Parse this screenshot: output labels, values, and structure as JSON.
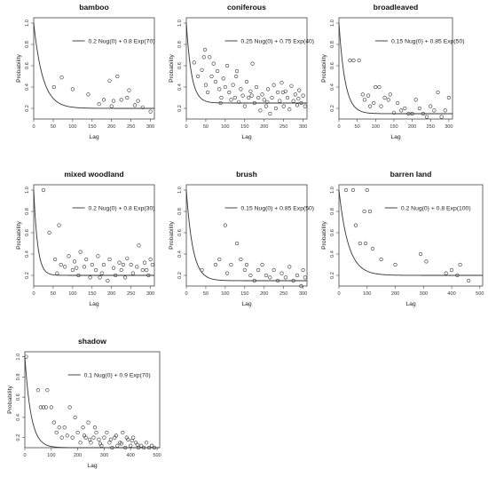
{
  "chart_data": [
    {
      "type": "scatter",
      "title": "bamboo",
      "xlabel": "Lag",
      "ylabel": "Probability",
      "xlim": [
        0,
        310
      ],
      "ylim": [
        0.1,
        1.05
      ],
      "xticks": [
        0,
        50,
        100,
        150,
        200,
        250,
        300
      ],
      "yticks": [
        0.2,
        0.4,
        0.6,
        0.8,
        1.0
      ],
      "legend": "top-right",
      "series": [
        {
          "name": "0.2 Nug(0) + 0.8 Exp(70)",
          "kind": "line",
          "model": {
            "nugget": 0.2,
            "sill": 0.8,
            "range": 70
          }
        },
        {
          "kind": "points",
          "x": [
            52,
            72,
            100,
            140,
            168,
            180,
            195,
            200,
            205,
            215,
            225,
            240,
            245,
            260,
            268,
            280,
            300
          ],
          "y": [
            0.4,
            0.49,
            0.38,
            0.33,
            0.24,
            0.28,
            0.46,
            0.22,
            0.27,
            0.5,
            0.28,
            0.3,
            0.37,
            0.23,
            0.27,
            0.21,
            0.17
          ]
        }
      ]
    },
    {
      "type": "scatter",
      "title": "coniferous",
      "xlabel": "Lag",
      "ylabel": "Probability",
      "xlim": [
        0,
        310
      ],
      "ylim": [
        0.1,
        1.05
      ],
      "xticks": [
        0,
        50,
        100,
        150,
        200,
        250,
        300
      ],
      "yticks": [
        0.2,
        0.4,
        0.6,
        0.8,
        1.0
      ],
      "legend": "top-right",
      "series": [
        {
          "name": "0.25 Nug(0) + 0.75 Exp(40)",
          "kind": "line",
          "model": {
            "nugget": 0.25,
            "sill": 0.75,
            "range": 40
          }
        },
        {
          "kind": "points",
          "x": [
            20,
            30,
            40,
            45,
            50,
            55,
            60,
            65,
            70,
            75,
            80,
            85,
            90,
            95,
            100,
            105,
            110,
            115,
            120,
            125,
            130,
            135,
            140,
            145,
            150,
            155,
            160,
            165,
            170,
            175,
            180,
            185,
            190,
            195,
            200,
            205,
            210,
            215,
            220,
            225,
            230,
            235,
            240,
            245,
            250,
            255,
            260,
            265,
            270,
            275,
            280,
            285,
            290,
            295,
            300,
            305,
            48,
            88,
            128,
            168,
            208,
            248,
            288
          ],
          "y": [
            0.63,
            0.5,
            0.56,
            0.68,
            0.42,
            0.35,
            0.68,
            0.5,
            0.62,
            0.45,
            0.55,
            0.38,
            0.3,
            0.48,
            0.4,
            0.6,
            0.35,
            0.28,
            0.42,
            0.3,
            0.55,
            0.26,
            0.38,
            0.32,
            0.22,
            0.45,
            0.3,
            0.36,
            0.62,
            0.25,
            0.4,
            0.3,
            0.18,
            0.33,
            0.28,
            0.22,
            0.38,
            0.15,
            0.3,
            0.42,
            0.2,
            0.35,
            0.27,
            0.44,
            0.22,
            0.36,
            0.3,
            0.19,
            0.41,
            0.27,
            0.33,
            0.23,
            0.37,
            0.25,
            0.32,
            0.22,
            0.75,
            0.25,
            0.5,
            0.32,
            0.26,
            0.35,
            0.29
          ]
        }
      ]
    },
    {
      "type": "scatter",
      "title": "broadleaved",
      "xlabel": "Lag",
      "ylabel": "Probability",
      "xlim": [
        0,
        310
      ],
      "ylim": [
        0.1,
        1.05
      ],
      "xticks": [
        0,
        50,
        100,
        150,
        200,
        250,
        300
      ],
      "yticks": [
        0.2,
        0.4,
        0.6,
        0.8,
        1.0
      ],
      "legend": "top-right",
      "series": [
        {
          "name": "0.15 Nug(0) + 0.85 Exp(50)",
          "kind": "line",
          "model": {
            "nugget": 0.15,
            "sill": 0.85,
            "range": 50
          }
        },
        {
          "kind": "points",
          "x": [
            30,
            40,
            55,
            65,
            70,
            80,
            85,
            95,
            100,
            110,
            115,
            125,
            135,
            140,
            150,
            160,
            170,
            180,
            190,
            200,
            210,
            220,
            230,
            240,
            250,
            260,
            270,
            280,
            290,
            300
          ],
          "y": [
            0.65,
            0.65,
            0.65,
            0.33,
            0.28,
            0.32,
            0.22,
            0.25,
            0.4,
            0.4,
            0.22,
            0.3,
            0.28,
            0.33,
            0.16,
            0.25,
            0.18,
            0.2,
            0.15,
            0.15,
            0.28,
            0.2,
            0.15,
            0.12,
            0.22,
            0.18,
            0.35,
            0.12,
            0.18,
            0.3
          ]
        }
      ]
    },
    {
      "type": "scatter",
      "title": "mixed woodland",
      "xlabel": "Lag",
      "ylabel": "Probability",
      "xlim": [
        0,
        310
      ],
      "ylim": [
        0.1,
        1.05
      ],
      "xticks": [
        0,
        50,
        100,
        150,
        200,
        250,
        300
      ],
      "yticks": [
        0.2,
        0.4,
        0.6,
        0.8,
        1.0
      ],
      "legend": "top-right",
      "series": [
        {
          "name": "0.2 Nug(0) + 0.8 Exp(30)",
          "kind": "line",
          "model": {
            "nugget": 0.2,
            "sill": 0.8,
            "range": 30
          }
        },
        {
          "kind": "points",
          "x": [
            25,
            40,
            55,
            65,
            70,
            80,
            90,
            100,
            105,
            115,
            120,
            130,
            135,
            145,
            150,
            160,
            165,
            175,
            180,
            190,
            195,
            205,
            210,
            220,
            225,
            235,
            240,
            250,
            255,
            265,
            270,
            280,
            285,
            295,
            300,
            305,
            60,
            110,
            170,
            230,
            290
          ],
          "y": [
            1.0,
            0.6,
            0.35,
            0.67,
            0.3,
            0.28,
            0.38,
            0.25,
            0.33,
            0.2,
            0.42,
            0.28,
            0.35,
            0.18,
            0.3,
            0.25,
            0.38,
            0.22,
            0.3,
            0.15,
            0.35,
            0.27,
            0.2,
            0.32,
            0.25,
            0.18,
            0.36,
            0.3,
            0.22,
            0.28,
            0.48,
            0.25,
            0.32,
            0.2,
            0.35,
            0.3,
            0.22,
            0.27,
            0.18,
            0.3,
            0.25
          ]
        }
      ]
    },
    {
      "type": "scatter",
      "title": "brush",
      "xlabel": "Lag",
      "ylabel": "Probability",
      "xlim": [
        0,
        310
      ],
      "ylim": [
        0.1,
        1.05
      ],
      "xticks": [
        0,
        50,
        100,
        150,
        200,
        250,
        300
      ],
      "yticks": [
        0.2,
        0.4,
        0.6,
        0.8,
        1.0
      ],
      "legend": "top-right",
      "series": [
        {
          "name": "0.15 Nug(0) + 0.85 Exp(50)",
          "kind": "line",
          "model": {
            "nugget": 0.15,
            "sill": 0.85,
            "range": 50
          }
        },
        {
          "kind": "points",
          "x": [
            40,
            75,
            85,
            100,
            105,
            115,
            130,
            140,
            150,
            155,
            165,
            175,
            185,
            195,
            205,
            215,
            225,
            235,
            245,
            255,
            265,
            275,
            285,
            295,
            300,
            305
          ],
          "y": [
            0.25,
            0.3,
            0.35,
            0.67,
            0.22,
            0.3,
            0.5,
            0.35,
            0.25,
            0.3,
            0.2,
            0.15,
            0.25,
            0.3,
            0.2,
            0.18,
            0.25,
            0.15,
            0.22,
            0.18,
            0.28,
            0.15,
            0.2,
            0.1,
            0.25,
            0.18
          ]
        }
      ]
    },
    {
      "type": "scatter",
      "title": "barren land",
      "xlabel": "Lag",
      "ylabel": "Probability",
      "xlim": [
        0,
        510
      ],
      "ylim": [
        0.1,
        1.05
      ],
      "xticks": [
        0,
        100,
        200,
        300,
        400,
        500
      ],
      "yticks": [
        0.2,
        0.4,
        0.6,
        0.8,
        1.0
      ],
      "legend": "top-right",
      "series": [
        {
          "name": "0.2 Nug(0) + 0.8 Exp(100)",
          "kind": "line",
          "model": {
            "nugget": 0.2,
            "sill": 0.8,
            "range": 100
          }
        },
        {
          "kind": "points",
          "x": [
            25,
            50,
            60,
            75,
            90,
            95,
            100,
            110,
            120,
            150,
            200,
            290,
            310,
            380,
            400,
            420,
            430,
            460
          ],
          "y": [
            1.0,
            1.0,
            0.67,
            0.5,
            0.8,
            0.5,
            1.0,
            0.8,
            0.45,
            0.35,
            0.3,
            0.4,
            0.33,
            0.22,
            0.25,
            0.2,
            0.3,
            0.15
          ]
        }
      ]
    },
    {
      "type": "scatter",
      "title": "shadow",
      "xlabel": "Lag",
      "ylabel": "Probability",
      "xlim": [
        0,
        510
      ],
      "ylim": [
        0.1,
        1.05
      ],
      "xticks": [
        0,
        100,
        200,
        300,
        400,
        500
      ],
      "yticks": [
        0.2,
        0.4,
        0.6,
        0.8,
        1.0
      ],
      "legend": "top-right",
      "series": [
        {
          "name": "0.1 Nug(0) + 0.9 Exp(70)",
          "kind": "line",
          "model": {
            "nugget": 0.1,
            "sill": 0.9,
            "range": 70
          }
        },
        {
          "kind": "points",
          "x": [
            5,
            50,
            60,
            70,
            80,
            85,
            100,
            110,
            120,
            130,
            140,
            150,
            160,
            170,
            180,
            190,
            200,
            210,
            220,
            230,
            240,
            250,
            260,
            270,
            280,
            290,
            300,
            310,
            320,
            330,
            340,
            350,
            360,
            370,
            380,
            390,
            400,
            410,
            420,
            430,
            440,
            450,
            460,
            470,
            480,
            490,
            225,
            245,
            265,
            285,
            325,
            345,
            365,
            385,
            405,
            425
          ],
          "y": [
            1.0,
            0.67,
            0.5,
            0.5,
            0.5,
            0.67,
            0.5,
            0.35,
            0.25,
            0.3,
            0.2,
            0.3,
            0.22,
            0.5,
            0.2,
            0.4,
            0.25,
            0.15,
            0.3,
            0.2,
            0.35,
            0.15,
            0.2,
            0.25,
            0.18,
            0.12,
            0.2,
            0.25,
            0.15,
            0.1,
            0.2,
            0.12,
            0.15,
            0.25,
            0.1,
            0.18,
            0.12,
            0.2,
            0.15,
            0.1,
            0.12,
            0.1,
            0.15,
            0.1,
            0.12,
            0.1,
            0.22,
            0.18,
            0.3,
            0.14,
            0.18,
            0.22,
            0.14,
            0.2,
            0.17,
            0.13
          ]
        }
      ]
    }
  ]
}
